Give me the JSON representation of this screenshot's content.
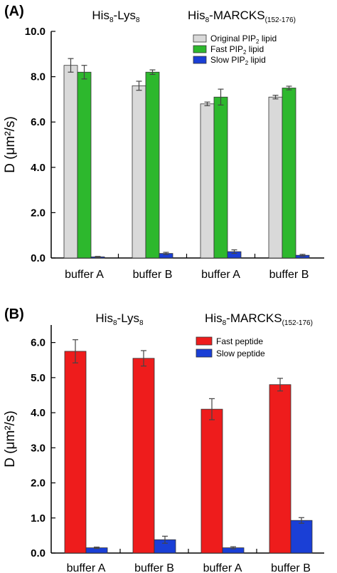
{
  "chart_data": [
    {
      "type": "bar",
      "panel_label": "(A)",
      "group_labels": [
        {
          "base": "His",
          "sub1": "8",
          "mid": "-Lys",
          "sub2": "8"
        },
        {
          "base": "His",
          "sub1": "8",
          "mid": "-MARCKS",
          "sub2": "(152-176)"
        }
      ],
      "ylabel": "D (μm²/s)",
      "ylim": [
        0,
        10
      ],
      "y_ticks": [
        "0.0",
        "2.0",
        "4.0",
        "6.0",
        "8.0",
        "10.0"
      ],
      "categories": [
        "buffer A",
        "buffer B",
        "buffer A",
        "buffer B"
      ],
      "legend_position": "top-right",
      "series": [
        {
          "name": "Original PIP2 lipid",
          "color": "#d9d9d9",
          "values": [
            8.5,
            7.6,
            6.8,
            7.1
          ],
          "errors": [
            0.3,
            0.2,
            0.08,
            0.08
          ]
        },
        {
          "name": "Fast PIP2 lipid",
          "color": "#2db82d",
          "values": [
            8.2,
            8.2,
            7.1,
            7.5
          ],
          "errors": [
            0.3,
            0.1,
            0.35,
            0.08
          ]
        },
        {
          "name": "Slow PIP2 lipid",
          "color": "#1a3fd6",
          "values": [
            0.05,
            0.2,
            0.28,
            0.12
          ],
          "errors": [
            0.02,
            0.05,
            0.08,
            0.04
          ]
        }
      ],
      "legend_items": [
        {
          "pre": "Original PIP",
          "sub": "2",
          "post": " lipid"
        },
        {
          "pre": "Fast PIP",
          "sub": "2",
          "post": " lipid"
        },
        {
          "pre": "Slow PIP",
          "sub": "2",
          "post": " lipid"
        }
      ]
    },
    {
      "type": "bar",
      "panel_label": "(B)",
      "group_labels": [
        {
          "base": "His",
          "sub1": "8",
          "mid": "-Lys",
          "sub2": "8"
        },
        {
          "base": "His",
          "sub1": "8",
          "mid": "-MARCKS",
          "sub2": "(152-176)"
        }
      ],
      "ylabel": "D (μm²/s)",
      "ylim": [
        0,
        6.5
      ],
      "y_ticks": [
        "0.0",
        "1.0",
        "2.0",
        "3.0",
        "4.0",
        "5.0",
        "6.0"
      ],
      "categories": [
        "buffer A",
        "buffer B",
        "buffer A",
        "buffer B"
      ],
      "legend_position": "top-right",
      "series": [
        {
          "name": "Fast peptide",
          "color": "#ee1c1c",
          "values": [
            5.75,
            5.55,
            4.1,
            4.8
          ],
          "errors": [
            0.33,
            0.22,
            0.3,
            0.18
          ]
        },
        {
          "name": "Slow peptide",
          "color": "#1a3fd6",
          "values": [
            0.15,
            0.38,
            0.15,
            0.93
          ],
          "errors": [
            0.02,
            0.1,
            0.03,
            0.08
          ]
        }
      ],
      "legend_items": [
        {
          "pre": "Fast peptide",
          "sub": "",
          "post": ""
        },
        {
          "pre": "Slow peptide",
          "sub": "",
          "post": ""
        }
      ]
    }
  ]
}
